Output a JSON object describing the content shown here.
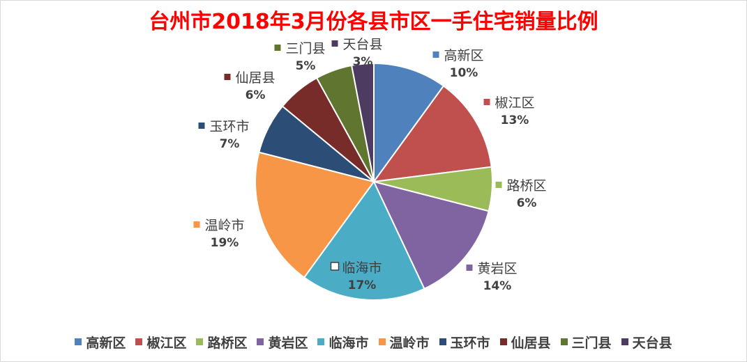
{
  "chart_data": {
    "type": "pie",
    "title": "台州市2018年3月份各县市区一手住宅销量比例",
    "categories": [
      "高新区",
      "椒江区",
      "路桥区",
      "黄岩区",
      "临海市",
      "温岭市",
      "玉环市",
      "仙居县",
      "三门县",
      "天台县"
    ],
    "values": [
      10,
      13,
      6,
      14,
      17,
      19,
      7,
      6,
      5,
      3
    ],
    "value_labels": [
      "10%",
      "13%",
      "6%",
      "14%",
      "17%",
      "19%",
      "7%",
      "6%",
      "5%",
      "3%"
    ],
    "colors": [
      "#4f81bd",
      "#c0504d",
      "#9bbb59",
      "#8064a2",
      "#4bacc6",
      "#f79646",
      "#2c4d75",
      "#772c2a",
      "#5f7530",
      "#4d3b62"
    ],
    "legend_position": "bottom"
  }
}
